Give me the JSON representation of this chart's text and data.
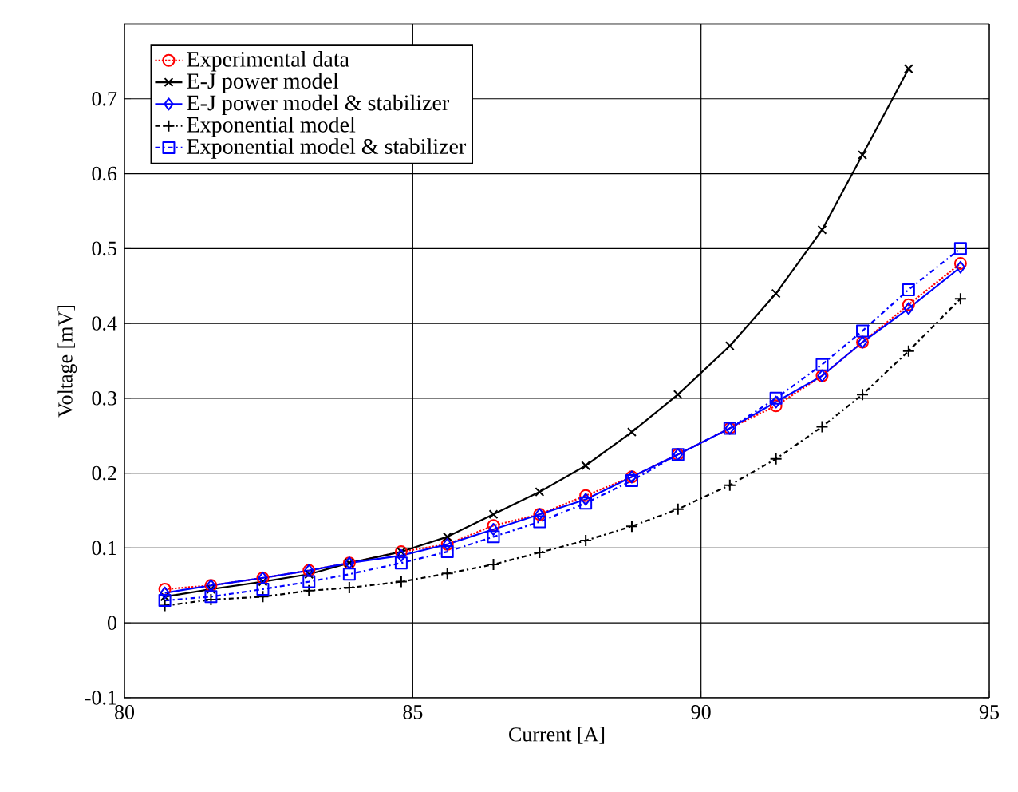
{
  "chart_data": {
    "type": "line",
    "xlabel": "Current [A]",
    "ylabel": "Voltage [mV]",
    "xlim": [
      80,
      95
    ],
    "xticks": [
      80,
      85,
      90,
      95
    ],
    "ylim": [
      -0.1,
      0.8
    ],
    "yticks": [
      -0.1,
      0,
      0.1,
      0.2,
      0.3,
      0.4,
      0.5,
      0.6,
      0.7
    ],
    "grid": true,
    "legend": "top left",
    "x": [
      80.7,
      81.5,
      82.4,
      83.2,
      83.9,
      84.8,
      85.6,
      86.4,
      87.2,
      88.0,
      88.8,
      89.6,
      90.5,
      91.3,
      92.1,
      92.8,
      93.6,
      94.5
    ],
    "series": [
      {
        "name": "Experimental data",
        "color": "#ff0000",
        "marker": "circle",
        "line_style": "dotted",
        "values": [
          0.045,
          0.05,
          0.06,
          0.07,
          0.08,
          0.095,
          0.105,
          0.13,
          0.145,
          0.17,
          0.195,
          0.225,
          0.26,
          0.29,
          0.33,
          0.375,
          0.425,
          0.48
        ]
      },
      {
        "name": "E-J power model",
        "color": "#000000",
        "marker": "cross",
        "line_style": "solid",
        "values": [
          0.035,
          0.045,
          0.055,
          0.065,
          0.08,
          0.095,
          0.115,
          0.145,
          0.175,
          0.21,
          0.255,
          0.305,
          0.37,
          0.44,
          0.525,
          0.625,
          0.74,
          null
        ]
      },
      {
        "name": "E-J power model & stabilizer",
        "color": "#0000ff",
        "marker": "diamond",
        "line_style": "solid",
        "values": [
          0.04,
          0.05,
          0.06,
          0.07,
          0.08,
          0.09,
          0.105,
          0.125,
          0.145,
          0.165,
          0.195,
          0.225,
          0.26,
          0.295,
          0.33,
          0.375,
          0.42,
          0.475
        ]
      },
      {
        "name": "Exponential model",
        "color": "#000000",
        "marker": "plus",
        "line_style": "dashdotted",
        "values": [
          0.023,
          0.031,
          0.035,
          0.043,
          0.047,
          0.055,
          0.066,
          0.078,
          0.094,
          0.11,
          0.129,
          0.152,
          0.184,
          0.219,
          0.262,
          0.305,
          0.363,
          0.433
        ]
      },
      {
        "name": "Exponential model & stabilizer",
        "color": "#0000ff",
        "marker": "square",
        "line_style": "dashdotted",
        "values": [
          0.03,
          0.035,
          0.045,
          0.055,
          0.065,
          0.08,
          0.095,
          0.115,
          0.135,
          0.16,
          0.19,
          0.225,
          0.26,
          0.3,
          0.345,
          0.39,
          0.445,
          0.5
        ]
      }
    ]
  }
}
